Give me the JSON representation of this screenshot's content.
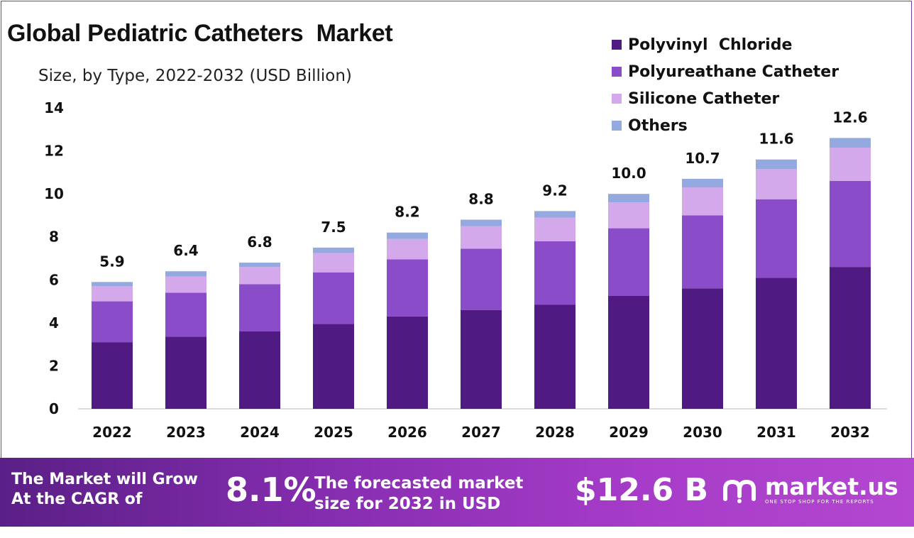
{
  "chart_data": {
    "type": "bar",
    "stacked": true,
    "title": "Global Pediatric Catheters  Market",
    "subtitle": "Size, by Type, 2022-2032 (USD Billion)",
    "categories": [
      "2022",
      "2023",
      "2024",
      "2025",
      "2026",
      "2027",
      "2028",
      "2029",
      "2030",
      "2031",
      "2032"
    ],
    "series": [
      {
        "name": "Polyvinyl  Chloride",
        "color": "#4f1a82",
        "values": [
          3.1,
          3.35,
          3.6,
          3.95,
          4.3,
          4.6,
          4.85,
          5.25,
          5.6,
          6.1,
          6.6
        ]
      },
      {
        "name": "Polyureathane Catheter",
        "color": "#8a4cc8",
        "values": [
          1.9,
          2.05,
          2.2,
          2.4,
          2.65,
          2.85,
          2.95,
          3.15,
          3.4,
          3.65,
          4.0
        ]
      },
      {
        "name": "Silicone Catheter",
        "color": "#d3a9ec",
        "values": [
          0.7,
          0.75,
          0.8,
          0.9,
          0.95,
          1.05,
          1.1,
          1.2,
          1.3,
          1.4,
          1.55
        ]
      },
      {
        "name": "Others",
        "color": "#93a9df",
        "values": [
          0.2,
          0.25,
          0.2,
          0.25,
          0.3,
          0.3,
          0.3,
          0.4,
          0.4,
          0.45,
          0.45
        ]
      }
    ],
    "totals": [
      "5.9",
      "6.4",
      "6.8",
      "7.5",
      "8.2",
      "8.8",
      "9.2",
      "10.0",
      "10.7",
      "11.6",
      "12.6"
    ],
    "y_ticks": [
      "0",
      "2",
      "4",
      "6",
      "8",
      "10",
      "12",
      "14"
    ],
    "ylim": [
      0,
      14
    ],
    "grid": false,
    "legend": "top-right"
  },
  "banner": {
    "cagr_label": "The Market will Grow At the CAGR of",
    "cagr_value": "8.1%",
    "forecast_label": "The forecasted market size for 2032 in USD",
    "forecast_value": "$12.6 B",
    "brand_name": "market.us",
    "brand_tagline": "ONE STOP SHOP FOR THE REPORTS"
  }
}
